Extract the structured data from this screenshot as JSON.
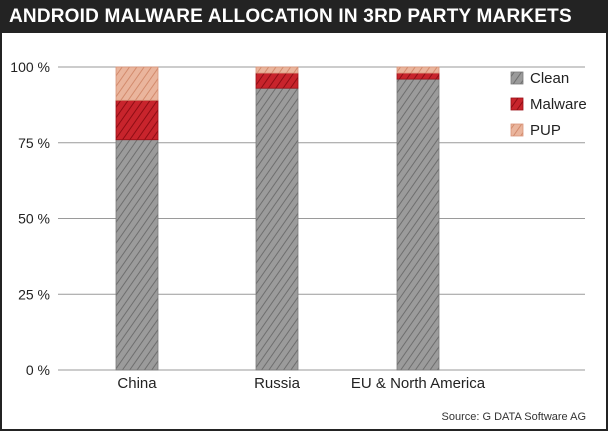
{
  "title": "ANDROID MALWARE ALLOCATION IN 3RD PARTY MARKETS",
  "source": "Source: G DATA Software AG",
  "colors": {
    "clean": "#8a8a8a",
    "malware": "#b5121b",
    "pup": "#e0a085",
    "grid": "#9a9a9a",
    "title_bg": "#232323"
  },
  "chart_data": {
    "type": "bar",
    "stacked": true,
    "categories": [
      "China",
      "Russia",
      "EU & North America"
    ],
    "series": [
      {
        "name": "Clean",
        "values": [
          76,
          93,
          96
        ]
      },
      {
        "name": "Malware",
        "values": [
          13,
          5,
          2
        ]
      },
      {
        "name": "PUP",
        "values": [
          11,
          2,
          2
        ]
      }
    ],
    "yticks": [
      "0 %",
      "25 %",
      "50 %",
      "75 %",
      "100 %"
    ],
    "ylim": [
      0,
      100
    ],
    "grid": true,
    "legend_position": "top-right"
  }
}
